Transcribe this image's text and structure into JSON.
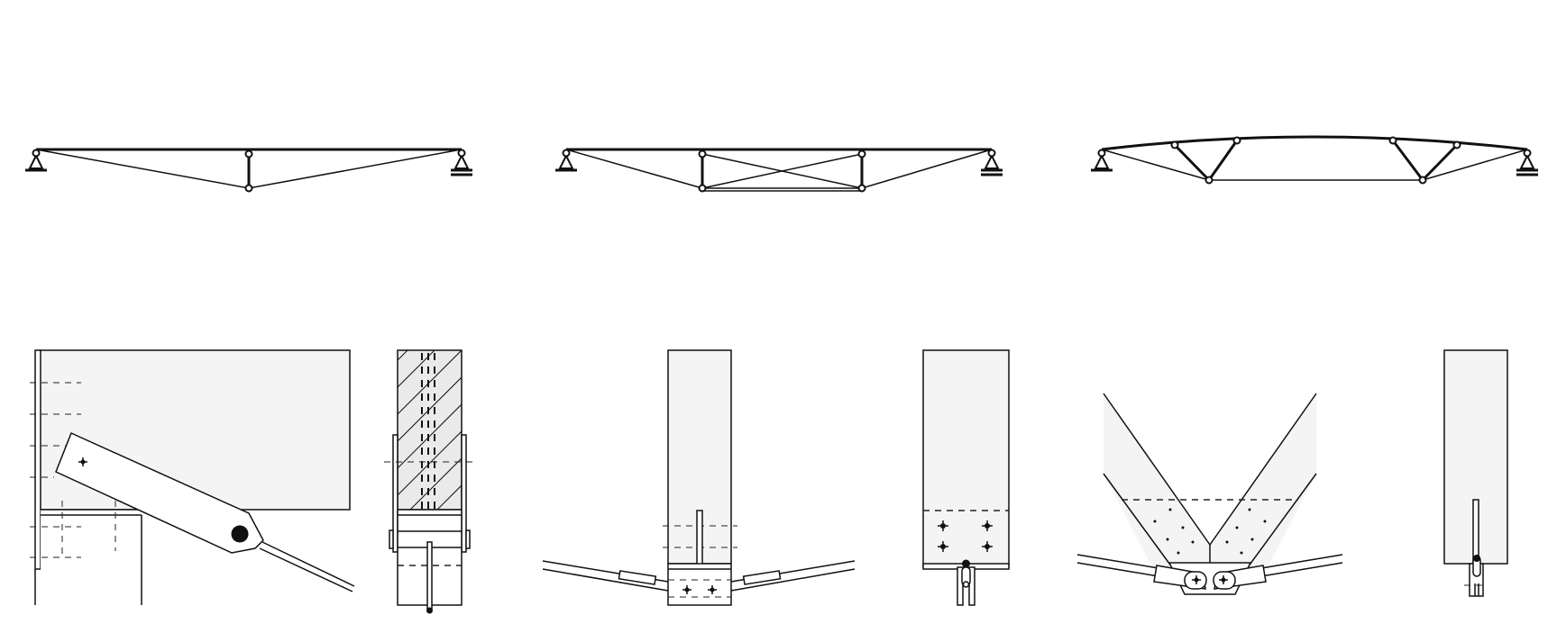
{
  "figure": {
    "trusses": [
      {
        "id": "truss-king-post",
        "posts": 1
      },
      {
        "id": "truss-queen-post-crossed",
        "posts": 2
      },
      {
        "id": "truss-arched-top-chord",
        "posts": 4
      }
    ],
    "details": [
      {
        "id": "detail-eave-connection"
      },
      {
        "id": "detail-section-through-rafter"
      },
      {
        "id": "detail-bottom-node-pin"
      },
      {
        "id": "detail-column-base-fork"
      },
      {
        "id": "detail-v-strut-node"
      },
      {
        "id": "detail-post-fork-pin"
      }
    ]
  },
  "colors": {
    "line": "#111111",
    "panel": "#f4f4f4",
    "background": "#ffffff"
  }
}
